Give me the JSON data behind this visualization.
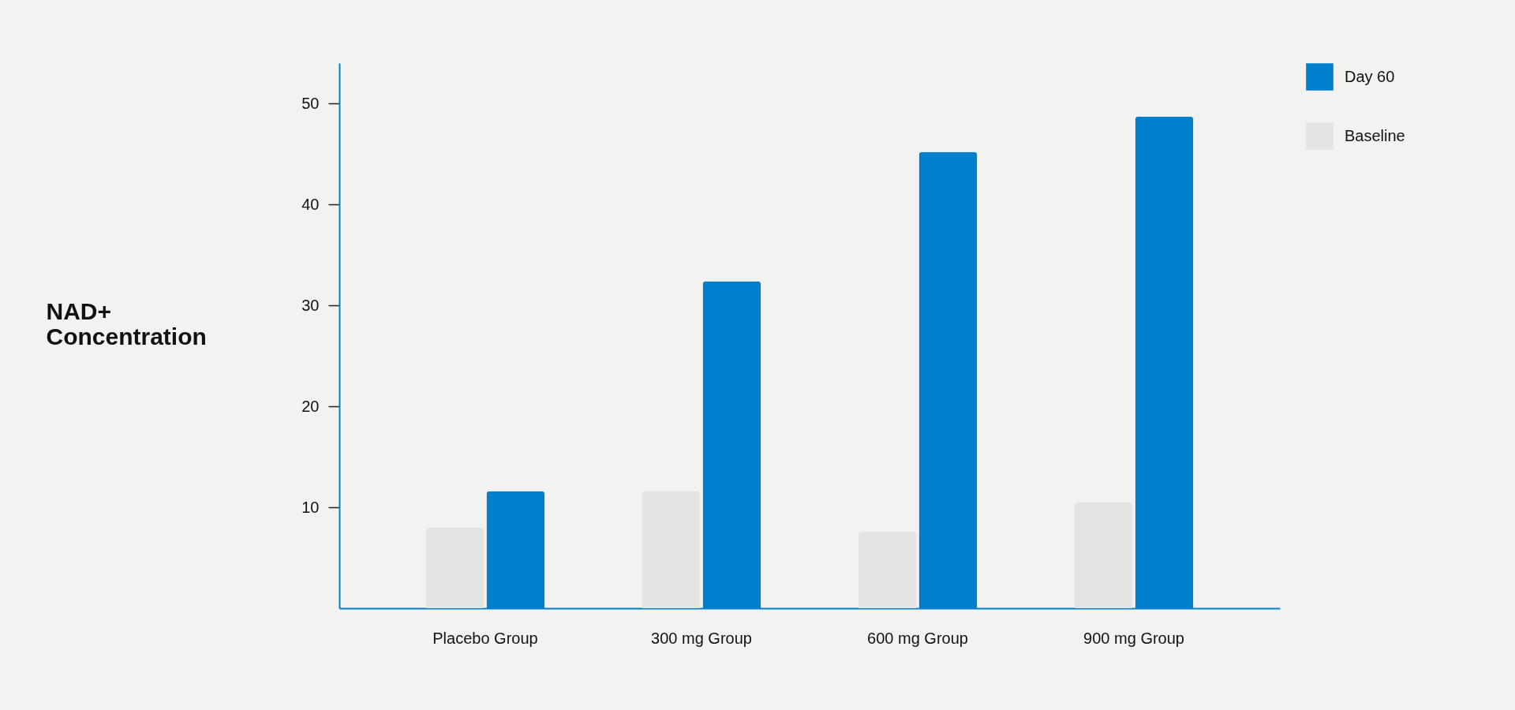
{
  "chart_data": {
    "type": "bar",
    "ylabel": "NAD+ Concentration",
    "categories": [
      "Placebo Group",
      "300 mg Group",
      "600 mg Group",
      "900 mg Group"
    ],
    "series": [
      {
        "name": "Baseline",
        "color": "#e4e4e2",
        "values": [
          8.0,
          11.6,
          7.6,
          10.5
        ]
      },
      {
        "name": "Day 60",
        "color": "#0080cc",
        "values": [
          11.6,
          32.4,
          45.2,
          48.7
        ]
      }
    ],
    "ylim": [
      0,
      54
    ],
    "yticks": [
      10,
      20,
      30,
      40,
      50
    ],
    "grid": false,
    "legend": "top right"
  }
}
